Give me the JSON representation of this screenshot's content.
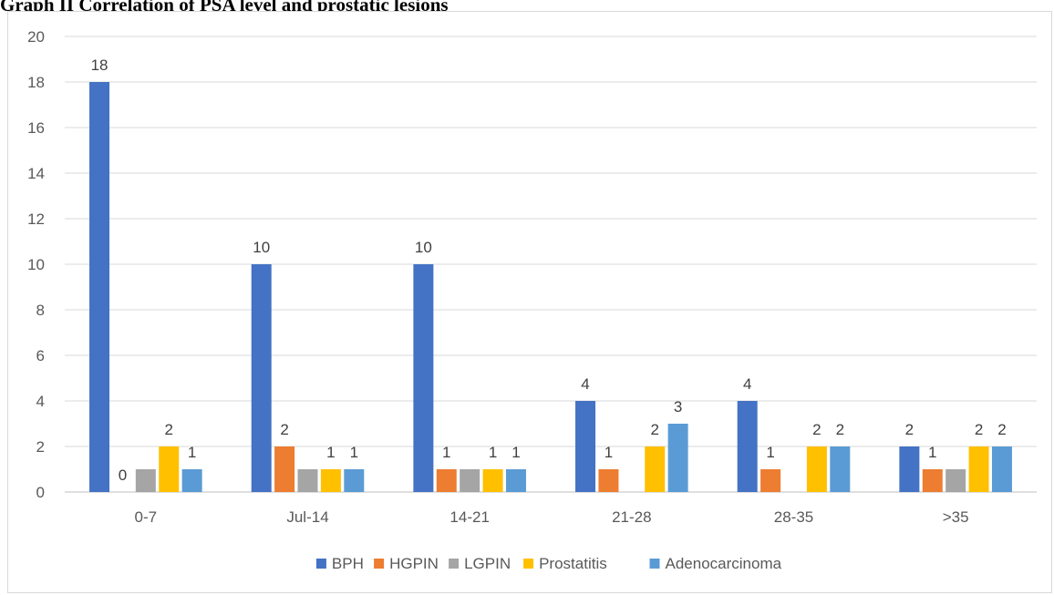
{
  "page": {
    "title": "Graph II Correlation of PSA level and prostatic lesions"
  },
  "chart_data": {
    "type": "bar",
    "categories": [
      "0-7",
      "Jul-14",
      "14-21",
      "21-28",
      "28-35",
      ">35"
    ],
    "series": [
      {
        "name": "BPH",
        "color": "#4472c4",
        "values": [
          18,
          10,
          10,
          4,
          4,
          2
        ]
      },
      {
        "name": "HGPIN",
        "color": "#ed7d31",
        "values": [
          0,
          2,
          1,
          1,
          1,
          1
        ]
      },
      {
        "name": "LGPIN",
        "color": "#a5a5a5",
        "values": [
          1,
          1,
          1,
          null,
          null,
          1
        ]
      },
      {
        "name": "Prostatitis",
        "color": "#ffc000",
        "values": [
          2,
          1,
          1,
          2,
          2,
          2
        ]
      },
      {
        "name": "Adenocarcinoma",
        "color": "#5b9bd5",
        "values": [
          1,
          1,
          1,
          3,
          2,
          2
        ]
      }
    ],
    "data_labels": [
      [
        "18",
        "10",
        "10",
        "4",
        "4",
        "2"
      ],
      [
        "0",
        "2",
        "1",
        "1",
        "1",
        "1"
      ],
      [
        "",
        "",
        "",
        "",
        "",
        ""
      ],
      [
        "2",
        "1",
        "1",
        "2",
        "2",
        "2"
      ],
      [
        "1",
        "1",
        "1",
        "3",
        "2",
        "2"
      ]
    ],
    "y_ticks": [
      "0",
      "2",
      "4",
      "6",
      "8",
      "10",
      "12",
      "14",
      "16",
      "18",
      "20"
    ],
    "ylim": [
      0,
      20
    ],
    "grid": true,
    "legend_position": "bottom",
    "title": "",
    "xlabel": "",
    "ylabel": ""
  }
}
